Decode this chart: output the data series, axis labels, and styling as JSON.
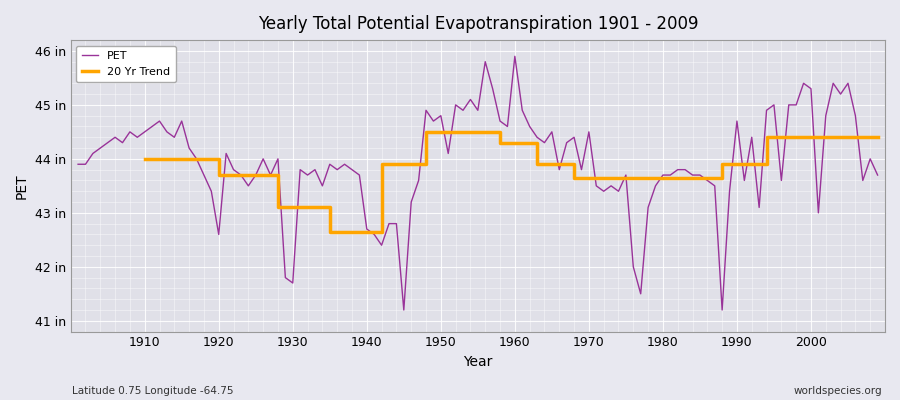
{
  "title": "Yearly Total Potential Evapotranspiration 1901 - 2009",
  "xlabel": "Year",
  "ylabel": "PET",
  "footnote_left": "Latitude 0.75 Longitude -64.75",
  "footnote_right": "worldspecies.org",
  "pet_color": "#993399",
  "trend_color": "#FFA500",
  "bg_color": "#E8E8F0",
  "plot_bg": "#E0E0E8",
  "grid_color": "#FFFFFF",
  "years": [
    1901,
    1902,
    1903,
    1904,
    1905,
    1906,
    1907,
    1908,
    1909,
    1910,
    1911,
    1912,
    1913,
    1914,
    1915,
    1916,
    1917,
    1918,
    1919,
    1920,
    1921,
    1922,
    1923,
    1924,
    1925,
    1926,
    1927,
    1928,
    1929,
    1930,
    1931,
    1932,
    1933,
    1934,
    1935,
    1936,
    1937,
    1938,
    1939,
    1940,
    1941,
    1942,
    1943,
    1944,
    1945,
    1946,
    1947,
    1948,
    1949,
    1950,
    1951,
    1952,
    1953,
    1954,
    1955,
    1956,
    1957,
    1958,
    1959,
    1960,
    1961,
    1962,
    1963,
    1964,
    1965,
    1966,
    1967,
    1968,
    1969,
    1970,
    1971,
    1972,
    1973,
    1974,
    1975,
    1976,
    1977,
    1978,
    1979,
    1980,
    1981,
    1982,
    1983,
    1984,
    1985,
    1986,
    1987,
    1988,
    1989,
    1990,
    1991,
    1992,
    1993,
    1994,
    1995,
    1996,
    1997,
    1998,
    1999,
    2000,
    2001,
    2002,
    2003,
    2004,
    2005,
    2006,
    2007,
    2008,
    2009
  ],
  "pet_values": [
    43.9,
    43.9,
    44.1,
    44.2,
    44.3,
    44.4,
    44.3,
    44.5,
    44.4,
    44.5,
    44.6,
    44.7,
    44.5,
    44.4,
    44.7,
    44.2,
    44.0,
    43.7,
    43.4,
    42.6,
    44.1,
    43.8,
    43.7,
    43.5,
    43.7,
    44.0,
    43.7,
    44.0,
    41.8,
    41.7,
    43.8,
    43.7,
    43.8,
    43.5,
    43.9,
    43.8,
    43.9,
    43.8,
    43.7,
    42.7,
    42.6,
    42.4,
    42.8,
    42.8,
    41.2,
    43.2,
    43.6,
    44.9,
    44.7,
    44.8,
    44.1,
    45.0,
    44.9,
    45.1,
    44.9,
    45.8,
    45.3,
    44.7,
    44.6,
    45.9,
    44.9,
    44.6,
    44.4,
    44.3,
    44.5,
    43.8,
    44.3,
    44.4,
    43.8,
    44.5,
    43.5,
    43.4,
    43.5,
    43.4,
    43.7,
    42.0,
    41.5,
    43.1,
    43.5,
    43.7,
    43.7,
    43.8,
    43.8,
    43.7,
    43.7,
    43.6,
    43.5,
    41.2,
    43.4,
    44.7,
    43.6,
    44.4,
    43.1,
    44.9,
    45.0,
    43.6,
    45.0,
    45.0,
    45.4,
    45.3,
    43.0,
    44.8,
    45.4,
    45.2,
    45.4,
    44.8,
    43.6,
    44.0,
    43.7
  ],
  "trend_years": [
    1910,
    1920,
    1920,
    1928,
    1928,
    1935,
    1935,
    1942,
    1942,
    1948,
    1948,
    1958,
    1958,
    1963,
    1963,
    1968,
    1968,
    1975,
    1975,
    1980,
    1980,
    1988,
    1988,
    1994,
    1994,
    2000,
    2000,
    2009
  ],
  "trend_values": [
    44.0,
    44.0,
    43.7,
    43.7,
    43.1,
    43.1,
    42.65,
    42.65,
    43.9,
    43.9,
    44.5,
    44.5,
    44.3,
    44.3,
    43.9,
    43.9,
    43.65,
    43.65,
    43.65,
    43.65,
    43.65,
    43.65,
    43.9,
    43.9,
    44.4,
    44.4,
    44.4,
    44.4
  ],
  "ylim": [
    40.8,
    46.2
  ],
  "yticks": [
    41,
    42,
    43,
    44,
    45,
    46
  ],
  "ytick_labels": [
    "41 in",
    "42 in",
    "43 in",
    "44 in",
    "45 in",
    "46 in"
  ],
  "xlim": [
    1900,
    2010
  ],
  "xticks": [
    1910,
    1920,
    1930,
    1940,
    1950,
    1960,
    1970,
    1980,
    1990,
    2000
  ]
}
